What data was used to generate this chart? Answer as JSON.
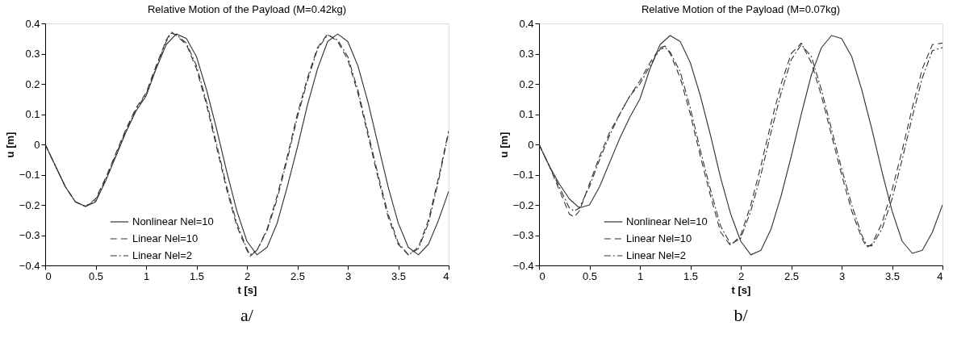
{
  "chart_data": [
    {
      "type": "line",
      "title": "Relative Motion of the Payload (M=0.42kg)",
      "xlabel": "t [s]",
      "ylabel": "u [m]",
      "xlim": [
        0,
        4
      ],
      "ylim": [
        -0.4,
        0.4
      ],
      "xticks": [
        0,
        0.5,
        1,
        1.5,
        2,
        2.5,
        3,
        3.5,
        4
      ],
      "yticks": [
        -0.4,
        -0.3,
        -0.2,
        -0.1,
        0,
        0.1,
        0.2,
        0.3,
        0.4
      ],
      "grid": false,
      "legend": "bottom left",
      "annotations": [
        "a/"
      ],
      "series": [
        {
          "name": "Nonlinear Nel=10",
          "color": "#333333",
          "line_style": "solid",
          "x": [
            0,
            0.1,
            0.2,
            0.3,
            0.4,
            0.5,
            0.6,
            0.7,
            0.8,
            0.9,
            1.0,
            1.1,
            1.2,
            1.3,
            1.4,
            1.5,
            1.6,
            1.7,
            1.8,
            1.9,
            2.0,
            2.1,
            2.2,
            2.3,
            2.4,
            2.5,
            2.6,
            2.7,
            2.8,
            2.9,
            3.0,
            3.1,
            3.2,
            3.3,
            3.4,
            3.5,
            3.6,
            3.7,
            3.8,
            3.9,
            4.0
          ],
          "values": [
            0,
            -0.07,
            -0.14,
            -0.19,
            -0.205,
            -0.19,
            -0.12,
            -0.04,
            0.04,
            0.11,
            0.16,
            0.25,
            0.33,
            0.365,
            0.35,
            0.29,
            0.18,
            0.05,
            -0.09,
            -0.22,
            -0.32,
            -0.365,
            -0.34,
            -0.26,
            -0.14,
            -0.01,
            0.13,
            0.25,
            0.34,
            0.365,
            0.34,
            0.26,
            0.14,
            0.0,
            -0.14,
            -0.26,
            -0.34,
            -0.365,
            -0.33,
            -0.25,
            -0.155
          ]
        },
        {
          "name": "Linear Nel=10",
          "color": "#333333",
          "line_style": "dashed",
          "x": [
            0,
            0.1,
            0.2,
            0.3,
            0.4,
            0.5,
            0.6,
            0.7,
            0.8,
            0.9,
            1.0,
            1.1,
            1.2,
            1.25,
            1.3,
            1.4,
            1.5,
            1.6,
            1.7,
            1.8,
            1.9,
            2.0,
            2.03,
            2.1,
            2.2,
            2.3,
            2.4,
            2.5,
            2.6,
            2.7,
            2.8,
            2.9,
            3.0,
            3.1,
            3.2,
            3.3,
            3.4,
            3.5,
            3.6,
            3.7,
            3.8,
            3.9,
            4.0
          ],
          "values": [
            0,
            -0.07,
            -0.14,
            -0.19,
            -0.205,
            -0.18,
            -0.11,
            -0.03,
            0.05,
            0.12,
            0.17,
            0.26,
            0.345,
            0.372,
            0.36,
            0.33,
            0.25,
            0.13,
            -0.01,
            -0.15,
            -0.27,
            -0.35,
            -0.37,
            -0.35,
            -0.28,
            -0.17,
            -0.04,
            0.1,
            0.22,
            0.32,
            0.365,
            0.34,
            0.28,
            0.17,
            0.03,
            -0.11,
            -0.24,
            -0.33,
            -0.365,
            -0.34,
            -0.25,
            -0.11,
            0.045
          ]
        },
        {
          "name": "Linear Nel=2",
          "color": "#333333",
          "line_style": "dashdot",
          "x": [
            0,
            0.1,
            0.2,
            0.3,
            0.4,
            0.5,
            0.6,
            0.7,
            0.8,
            0.9,
            1.0,
            1.1,
            1.2,
            1.25,
            1.3,
            1.4,
            1.5,
            1.6,
            1.7,
            1.8,
            1.9,
            2.0,
            2.03,
            2.1,
            2.2,
            2.3,
            2.4,
            2.5,
            2.6,
            2.7,
            2.8,
            2.9,
            3.0,
            3.1,
            3.2,
            3.3,
            3.4,
            3.5,
            3.6,
            3.7,
            3.8,
            3.9,
            4.0
          ],
          "values": [
            0,
            -0.07,
            -0.14,
            -0.19,
            -0.205,
            -0.185,
            -0.115,
            -0.035,
            0.045,
            0.115,
            0.165,
            0.255,
            0.34,
            0.368,
            0.362,
            0.335,
            0.26,
            0.14,
            0.0,
            -0.14,
            -0.26,
            -0.345,
            -0.365,
            -0.35,
            -0.285,
            -0.18,
            -0.05,
            0.09,
            0.21,
            0.315,
            0.362,
            0.345,
            0.29,
            0.18,
            0.04,
            -0.1,
            -0.23,
            -0.325,
            -0.365,
            -0.345,
            -0.26,
            -0.12,
            0.04
          ]
        }
      ]
    },
    {
      "type": "line",
      "title": "Relative Motion of the Payload (M=0.07kg)",
      "xlabel": "t [s]",
      "ylabel": "u [m]",
      "xlim": [
        0,
        4
      ],
      "ylim": [
        -0.4,
        0.4
      ],
      "xticks": [
        0,
        0.5,
        1,
        1.5,
        2,
        2.5,
        3,
        3.5,
        4
      ],
      "yticks": [
        -0.4,
        -0.3,
        -0.2,
        -0.1,
        0,
        0.1,
        0.2,
        0.3,
        0.4
      ],
      "grid": false,
      "legend": "bottom left",
      "annotations": [
        "b/"
      ],
      "series": [
        {
          "name": "Nonlinear Nel=10",
          "color": "#333333",
          "line_style": "solid",
          "x": [
            0,
            0.1,
            0.2,
            0.3,
            0.4,
            0.5,
            0.6,
            0.7,
            0.8,
            0.9,
            1.0,
            1.1,
            1.2,
            1.3,
            1.4,
            1.5,
            1.6,
            1.7,
            1.8,
            1.9,
            2.0,
            2.1,
            2.2,
            2.3,
            2.4,
            2.5,
            2.6,
            2.7,
            2.8,
            2.9,
            3.0,
            3.1,
            3.2,
            3.3,
            3.4,
            3.5,
            3.6,
            3.7,
            3.8,
            3.9,
            4.0
          ],
          "values": [
            0,
            -0.07,
            -0.13,
            -0.18,
            -0.21,
            -0.2,
            -0.14,
            -0.06,
            0.02,
            0.09,
            0.15,
            0.25,
            0.33,
            0.36,
            0.34,
            0.27,
            0.16,
            0.03,
            -0.11,
            -0.23,
            -0.32,
            -0.365,
            -0.35,
            -0.28,
            -0.17,
            -0.04,
            0.1,
            0.23,
            0.32,
            0.36,
            0.35,
            0.29,
            0.18,
            0.05,
            -0.09,
            -0.22,
            -0.32,
            -0.36,
            -0.35,
            -0.29,
            -0.2
          ]
        },
        {
          "name": "Linear Nel=10",
          "color": "#333333",
          "line_style": "dashed",
          "x": [
            0,
            0.1,
            0.2,
            0.3,
            0.35,
            0.4,
            0.5,
            0.6,
            0.7,
            0.8,
            0.9,
            1.0,
            1.1,
            1.2,
            1.25,
            1.3,
            1.4,
            1.5,
            1.6,
            1.7,
            1.8,
            1.9,
            2.0,
            2.1,
            2.2,
            2.3,
            2.4,
            2.5,
            2.6,
            2.7,
            2.8,
            2.9,
            3.0,
            3.1,
            3.2,
            3.25,
            3.3,
            3.4,
            3.5,
            3.6,
            3.7,
            3.8,
            3.9,
            4.0
          ],
          "values": [
            0,
            -0.07,
            -0.15,
            -0.23,
            -0.24,
            -0.22,
            -0.13,
            -0.04,
            0.04,
            0.1,
            0.16,
            0.21,
            0.27,
            0.32,
            0.325,
            0.3,
            0.22,
            0.1,
            -0.04,
            -0.17,
            -0.29,
            -0.335,
            -0.3,
            -0.2,
            -0.07,
            0.07,
            0.2,
            0.3,
            0.335,
            0.27,
            0.16,
            0.03,
            -0.1,
            -0.22,
            -0.31,
            -0.34,
            -0.33,
            -0.26,
            -0.15,
            -0.02,
            0.12,
            0.25,
            0.33,
            0.335
          ]
        },
        {
          "name": "Linear Nel=2",
          "color": "#333333",
          "line_style": "dashdot",
          "x": [
            0,
            0.1,
            0.2,
            0.3,
            0.35,
            0.4,
            0.5,
            0.6,
            0.7,
            0.8,
            0.9,
            1.0,
            1.1,
            1.2,
            1.25,
            1.3,
            1.4,
            1.5,
            1.6,
            1.7,
            1.8,
            1.9,
            2.0,
            2.1,
            2.2,
            2.3,
            2.4,
            2.5,
            2.6,
            2.7,
            2.8,
            2.9,
            3.0,
            3.1,
            3.2,
            3.25,
            3.3,
            3.4,
            3.5,
            3.6,
            3.7,
            3.8,
            3.9,
            4.0
          ],
          "values": [
            0,
            -0.07,
            -0.14,
            -0.21,
            -0.22,
            -0.21,
            -0.14,
            -0.05,
            0.03,
            0.1,
            0.16,
            0.2,
            0.26,
            0.315,
            0.32,
            0.305,
            0.24,
            0.12,
            -0.02,
            -0.15,
            -0.27,
            -0.33,
            -0.31,
            -0.22,
            -0.1,
            0.04,
            0.17,
            0.28,
            0.33,
            0.29,
            0.18,
            0.05,
            -0.08,
            -0.2,
            -0.3,
            -0.335,
            -0.335,
            -0.28,
            -0.18,
            -0.05,
            0.09,
            0.22,
            0.31,
            0.32
          ]
        }
      ]
    }
  ]
}
